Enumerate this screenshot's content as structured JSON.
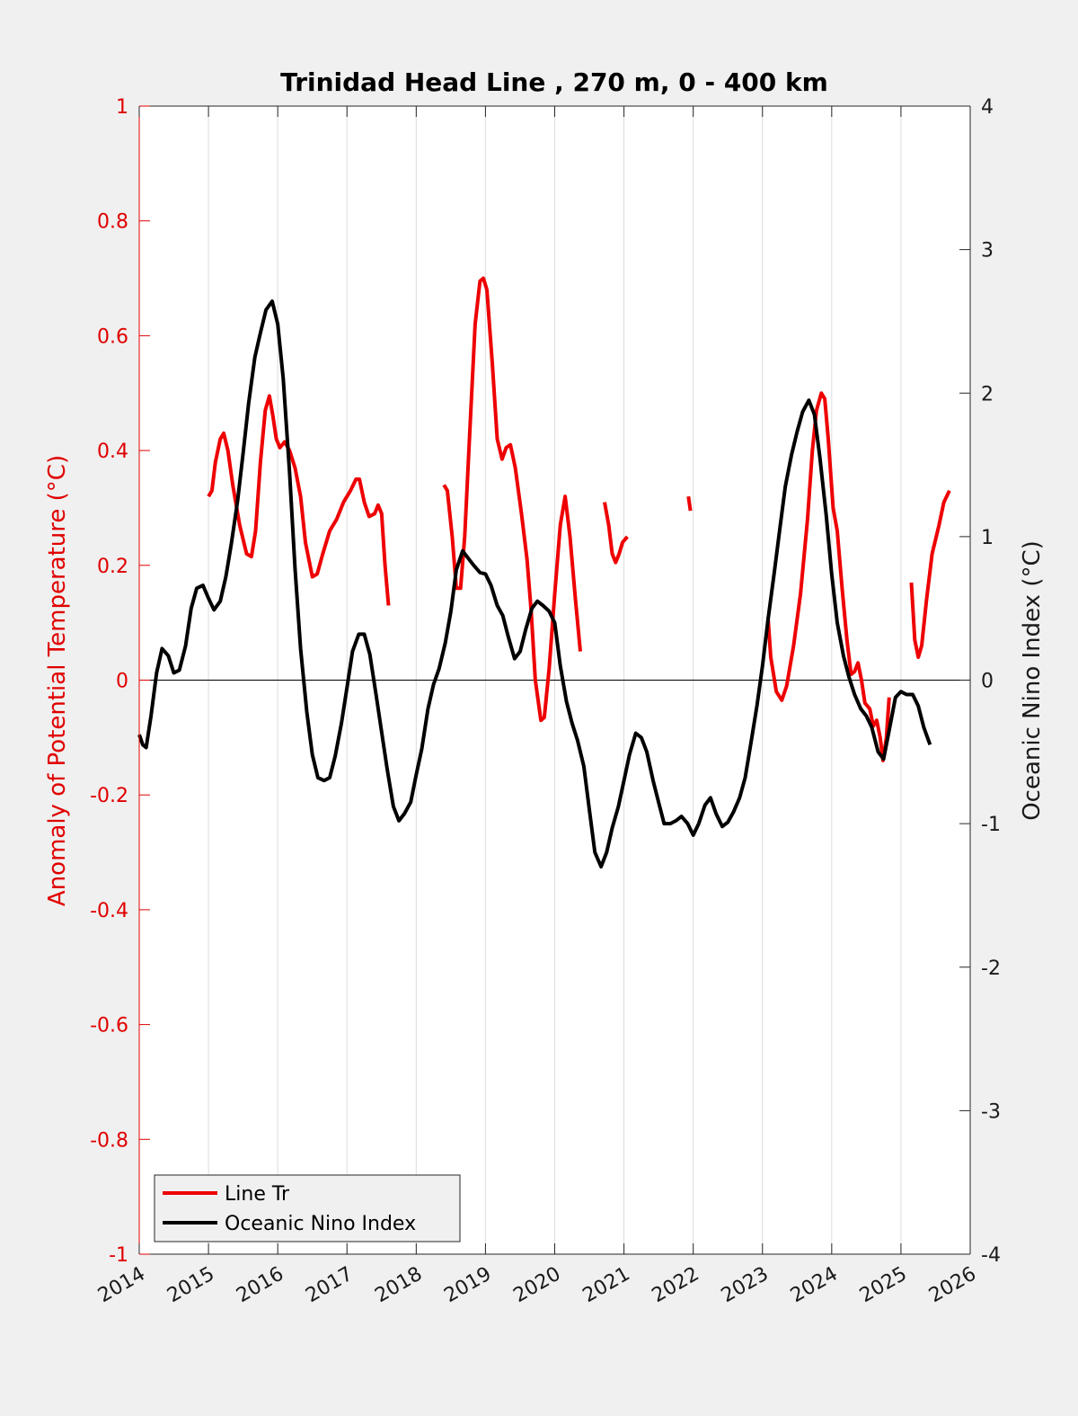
{
  "chart_data": {
    "type": "line",
    "title": "Trinidad Head Line , 270 m, 0 - 400 km",
    "xlabel": "",
    "ylabel_left": "Anomaly of Potential Temperature (°C)",
    "ylabel_right": "Oceanic Nino Index (°C)",
    "xlim": [
      2014,
      2026
    ],
    "ylim_left": [
      -1,
      1
    ],
    "ylim_right": [
      -4,
      4
    ],
    "x_ticks": [
      2014,
      2015,
      2016,
      2017,
      2018,
      2019,
      2020,
      2021,
      2022,
      2023,
      2024,
      2025,
      2026
    ],
    "x_tick_labels": [
      "2014",
      "2015",
      "2016",
      "2017",
      "2018",
      "2019",
      "2020",
      "2021",
      "2022",
      "2023",
      "2024",
      "2025",
      "2026"
    ],
    "y_left_ticks": [
      1,
      0.8,
      0.6,
      0.4,
      0.2,
      0,
      -0.2,
      -0.4,
      -0.6,
      -0.8,
      -1
    ],
    "y_left_tick_labels": [
      "1",
      "0.8",
      "0.6",
      "0.4",
      "0.2",
      "0",
      "-0.2",
      "-0.4",
      "-0.6",
      "-0.8",
      "-1"
    ],
    "y_right_ticks": [
      4,
      3,
      2,
      1,
      0,
      -1,
      -2,
      -3,
      -4
    ],
    "y_right_tick_labels": [
      "4",
      "3",
      "2",
      "1",
      "0",
      "-1",
      "-2",
      "-3",
      "-4"
    ],
    "grid": "x-only",
    "legend_position": "bottom-left",
    "series": [
      {
        "name": "Line Tr",
        "axis": "left",
        "color": "#ee0000",
        "segments": [
          [
            [
              2015.0,
              0.32
            ],
            [
              2015.05,
              0.33
            ],
            [
              2015.1,
              0.38
            ],
            [
              2015.17,
              0.42
            ],
            [
              2015.22,
              0.43
            ],
            [
              2015.28,
              0.4
            ],
            [
              2015.35,
              0.34
            ],
            [
              2015.45,
              0.27
            ],
            [
              2015.55,
              0.22
            ],
            [
              2015.62,
              0.215
            ],
            [
              2015.68,
              0.26
            ],
            [
              2015.75,
              0.38
            ],
            [
              2015.82,
              0.47
            ],
            [
              2015.88,
              0.495
            ],
            [
              2015.93,
              0.46
            ],
            [
              2015.98,
              0.42
            ],
            [
              2016.03,
              0.405
            ],
            [
              2016.1,
              0.415
            ],
            [
              2016.17,
              0.4
            ],
            [
              2016.25,
              0.37
            ],
            [
              2016.33,
              0.32
            ],
            [
              2016.4,
              0.24
            ],
            [
              2016.5,
              0.18
            ],
            [
              2016.57,
              0.185
            ],
            [
              2016.65,
              0.22
            ],
            [
              2016.75,
              0.26
            ],
            [
              2016.85,
              0.28
            ],
            [
              2016.95,
              0.31
            ],
            [
              2017.05,
              0.33
            ],
            [
              2017.13,
              0.35
            ],
            [
              2017.18,
              0.35
            ],
            [
              2017.25,
              0.31
            ],
            [
              2017.32,
              0.285
            ],
            [
              2017.4,
              0.29
            ],
            [
              2017.45,
              0.305
            ],
            [
              2017.5,
              0.29
            ],
            [
              2017.55,
              0.2
            ],
            [
              2017.6,
              0.13
            ]
          ],
          [
            [
              2018.4,
              0.34
            ],
            [
              2018.45,
              0.33
            ],
            [
              2018.52,
              0.25
            ],
            [
              2018.58,
              0.16
            ],
            [
              2018.64,
              0.16
            ],
            [
              2018.7,
              0.25
            ],
            [
              2018.78,
              0.45
            ],
            [
              2018.85,
              0.62
            ],
            [
              2018.92,
              0.695
            ],
            [
              2018.97,
              0.7
            ],
            [
              2019.02,
              0.68
            ],
            [
              2019.1,
              0.55
            ],
            [
              2019.17,
              0.42
            ],
            [
              2019.24,
              0.385
            ],
            [
              2019.3,
              0.405
            ],
            [
              2019.36,
              0.41
            ],
            [
              2019.43,
              0.37
            ],
            [
              2019.52,
              0.29
            ],
            [
              2019.6,
              0.21
            ],
            [
              2019.66,
              0.12
            ],
            [
              2019.72,
              0.0
            ],
            [
              2019.8,
              -0.07
            ],
            [
              2019.85,
              -0.065
            ],
            [
              2019.92,
              0.02
            ],
            [
              2020.0,
              0.15
            ],
            [
              2020.08,
              0.27
            ],
            [
              2020.15,
              0.32
            ],
            [
              2020.22,
              0.25
            ],
            [
              2020.3,
              0.14
            ],
            [
              2020.37,
              0.05
            ]
          ],
          [
            [
              2020.72,
              0.31
            ],
            [
              2020.78,
              0.27
            ],
            [
              2020.83,
              0.22
            ],
            [
              2020.88,
              0.205
            ],
            [
              2020.93,
              0.22
            ],
            [
              2020.98,
              0.24
            ],
            [
              2021.05,
              0.25
            ]
          ],
          [
            [
              2021.93,
              0.32
            ],
            [
              2021.96,
              0.295
            ]
          ],
          [
            [
              2023.08,
              0.11
            ],
            [
              2023.12,
              0.04
            ],
            [
              2023.2,
              -0.02
            ],
            [
              2023.28,
              -0.035
            ],
            [
              2023.35,
              -0.01
            ],
            [
              2023.45,
              0.06
            ],
            [
              2023.55,
              0.15
            ],
            [
              2023.65,
              0.28
            ],
            [
              2023.72,
              0.4
            ],
            [
              2023.78,
              0.47
            ],
            [
              2023.85,
              0.5
            ],
            [
              2023.9,
              0.49
            ],
            [
              2023.95,
              0.42
            ],
            [
              2024.02,
              0.3
            ],
            [
              2024.08,
              0.26
            ],
            [
              2024.15,
              0.16
            ],
            [
              2024.22,
              0.07
            ],
            [
              2024.28,
              0.01
            ],
            [
              2024.33,
              0.015
            ],
            [
              2024.38,
              0.03
            ],
            [
              2024.43,
              0.0
            ],
            [
              2024.48,
              -0.04
            ],
            [
              2024.55,
              -0.05
            ],
            [
              2024.6,
              -0.08
            ],
            [
              2024.65,
              -0.07
            ],
            [
              2024.7,
              -0.1
            ],
            [
              2024.74,
              -0.14
            ],
            [
              2024.79,
              -0.1
            ],
            [
              2024.83,
              -0.03
            ]
          ],
          [
            [
              2025.15,
              0.17
            ],
            [
              2025.2,
              0.07
            ],
            [
              2025.25,
              0.04
            ],
            [
              2025.3,
              0.06
            ],
            [
              2025.37,
              0.14
            ],
            [
              2025.45,
              0.22
            ],
            [
              2025.55,
              0.27
            ],
            [
              2025.62,
              0.31
            ],
            [
              2025.7,
              0.33
            ]
          ]
        ]
      },
      {
        "name": "Oceanic Nino Index",
        "axis": "right",
        "color": "#000000",
        "segments": [
          [
            [
              2014.0,
              -0.38
            ],
            [
              2014.05,
              -0.45
            ],
            [
              2014.1,
              -0.47
            ],
            [
              2014.17,
              -0.25
            ],
            [
              2014.25,
              0.05
            ],
            [
              2014.33,
              0.22
            ],
            [
              2014.42,
              0.17
            ],
            [
              2014.5,
              0.05
            ],
            [
              2014.58,
              0.07
            ],
            [
              2014.67,
              0.24
            ],
            [
              2014.75,
              0.5
            ],
            [
              2014.83,
              0.64
            ],
            [
              2014.92,
              0.66
            ],
            [
              2015.0,
              0.57
            ],
            [
              2015.08,
              0.49
            ],
            [
              2015.17,
              0.55
            ],
            [
              2015.25,
              0.72
            ],
            [
              2015.33,
              0.95
            ],
            [
              2015.42,
              1.25
            ],
            [
              2015.5,
              1.58
            ],
            [
              2015.58,
              1.93
            ],
            [
              2015.67,
              2.25
            ],
            [
              2015.75,
              2.42
            ],
            [
              2015.83,
              2.58
            ],
            [
              2015.92,
              2.64
            ],
            [
              2016.0,
              2.48
            ],
            [
              2016.08,
              2.1
            ],
            [
              2016.17,
              1.45
            ],
            [
              2016.25,
              0.78
            ],
            [
              2016.33,
              0.22
            ],
            [
              2016.42,
              -0.22
            ],
            [
              2016.5,
              -0.52
            ],
            [
              2016.58,
              -0.68
            ],
            [
              2016.67,
              -0.7
            ],
            [
              2016.75,
              -0.68
            ],
            [
              2016.83,
              -0.53
            ],
            [
              2016.92,
              -0.3
            ],
            [
              2017.0,
              -0.05
            ],
            [
              2017.08,
              0.2
            ],
            [
              2017.17,
              0.32
            ],
            [
              2017.25,
              0.32
            ],
            [
              2017.33,
              0.18
            ],
            [
              2017.42,
              -0.1
            ],
            [
              2017.5,
              -0.36
            ],
            [
              2017.58,
              -0.62
            ],
            [
              2017.67,
              -0.88
            ],
            [
              2017.75,
              -0.98
            ],
            [
              2017.83,
              -0.93
            ],
            [
              2017.92,
              -0.85
            ],
            [
              2018.0,
              -0.66
            ],
            [
              2018.08,
              -0.48
            ],
            [
              2018.17,
              -0.2
            ],
            [
              2018.25,
              -0.03
            ],
            [
              2018.33,
              0.08
            ],
            [
              2018.42,
              0.26
            ],
            [
              2018.5,
              0.48
            ],
            [
              2018.58,
              0.77
            ],
            [
              2018.67,
              0.9
            ],
            [
              2018.75,
              0.85
            ],
            [
              2018.83,
              0.8
            ],
            [
              2018.92,
              0.75
            ],
            [
              2019.0,
              0.74
            ],
            [
              2019.08,
              0.66
            ],
            [
              2019.17,
              0.52
            ],
            [
              2019.25,
              0.45
            ],
            [
              2019.33,
              0.3
            ],
            [
              2019.42,
              0.15
            ],
            [
              2019.5,
              0.2
            ],
            [
              2019.58,
              0.35
            ],
            [
              2019.67,
              0.5
            ],
            [
              2019.75,
              0.55
            ],
            [
              2019.83,
              0.52
            ],
            [
              2019.92,
              0.48
            ],
            [
              2020.0,
              0.4
            ],
            [
              2020.08,
              0.1
            ],
            [
              2020.17,
              -0.15
            ],
            [
              2020.25,
              -0.3
            ],
            [
              2020.33,
              -0.42
            ],
            [
              2020.42,
              -0.6
            ],
            [
              2020.5,
              -0.9
            ],
            [
              2020.58,
              -1.2
            ],
            [
              2020.67,
              -1.3
            ],
            [
              2020.75,
              -1.2
            ],
            [
              2020.83,
              -1.03
            ],
            [
              2020.92,
              -0.88
            ],
            [
              2021.0,
              -0.7
            ],
            [
              2021.08,
              -0.52
            ],
            [
              2021.17,
              -0.37
            ],
            [
              2021.25,
              -0.4
            ],
            [
              2021.33,
              -0.5
            ],
            [
              2021.42,
              -0.7
            ],
            [
              2021.5,
              -0.85
            ],
            [
              2021.58,
              -1.0
            ],
            [
              2021.67,
              -1.0
            ],
            [
              2021.75,
              -0.98
            ],
            [
              2021.83,
              -0.95
            ],
            [
              2021.92,
              -1.0
            ],
            [
              2022.0,
              -1.08
            ],
            [
              2022.08,
              -1.0
            ],
            [
              2022.17,
              -0.87
            ],
            [
              2022.25,
              -0.82
            ],
            [
              2022.33,
              -0.93
            ],
            [
              2022.42,
              -1.02
            ],
            [
              2022.5,
              -0.99
            ],
            [
              2022.58,
              -0.92
            ],
            [
              2022.67,
              -0.82
            ],
            [
              2022.75,
              -0.68
            ],
            [
              2022.83,
              -0.45
            ],
            [
              2022.92,
              -0.18
            ],
            [
              2023.0,
              0.1
            ],
            [
              2023.08,
              0.42
            ],
            [
              2023.17,
              0.75
            ],
            [
              2023.25,
              1.05
            ],
            [
              2023.33,
              1.35
            ],
            [
              2023.42,
              1.57
            ],
            [
              2023.5,
              1.73
            ],
            [
              2023.58,
              1.87
            ],
            [
              2023.67,
              1.95
            ],
            [
              2023.75,
              1.85
            ],
            [
              2023.83,
              1.55
            ],
            [
              2023.92,
              1.15
            ],
            [
              2024.0,
              0.74
            ],
            [
              2024.08,
              0.4
            ],
            [
              2024.17,
              0.17
            ],
            [
              2024.25,
              0.02
            ],
            [
              2024.33,
              -0.1
            ],
            [
              2024.42,
              -0.2
            ],
            [
              2024.5,
              -0.25
            ],
            [
              2024.58,
              -0.33
            ],
            [
              2024.67,
              -0.5
            ],
            [
              2024.75,
              -0.55
            ],
            [
              2024.83,
              -0.35
            ],
            [
              2024.92,
              -0.12
            ],
            [
              2025.0,
              -0.08
            ],
            [
              2025.08,
              -0.1
            ],
            [
              2025.17,
              -0.1
            ],
            [
              2025.25,
              -0.18
            ],
            [
              2025.33,
              -0.33
            ],
            [
              2025.42,
              -0.45
            ]
          ]
        ]
      }
    ]
  }
}
